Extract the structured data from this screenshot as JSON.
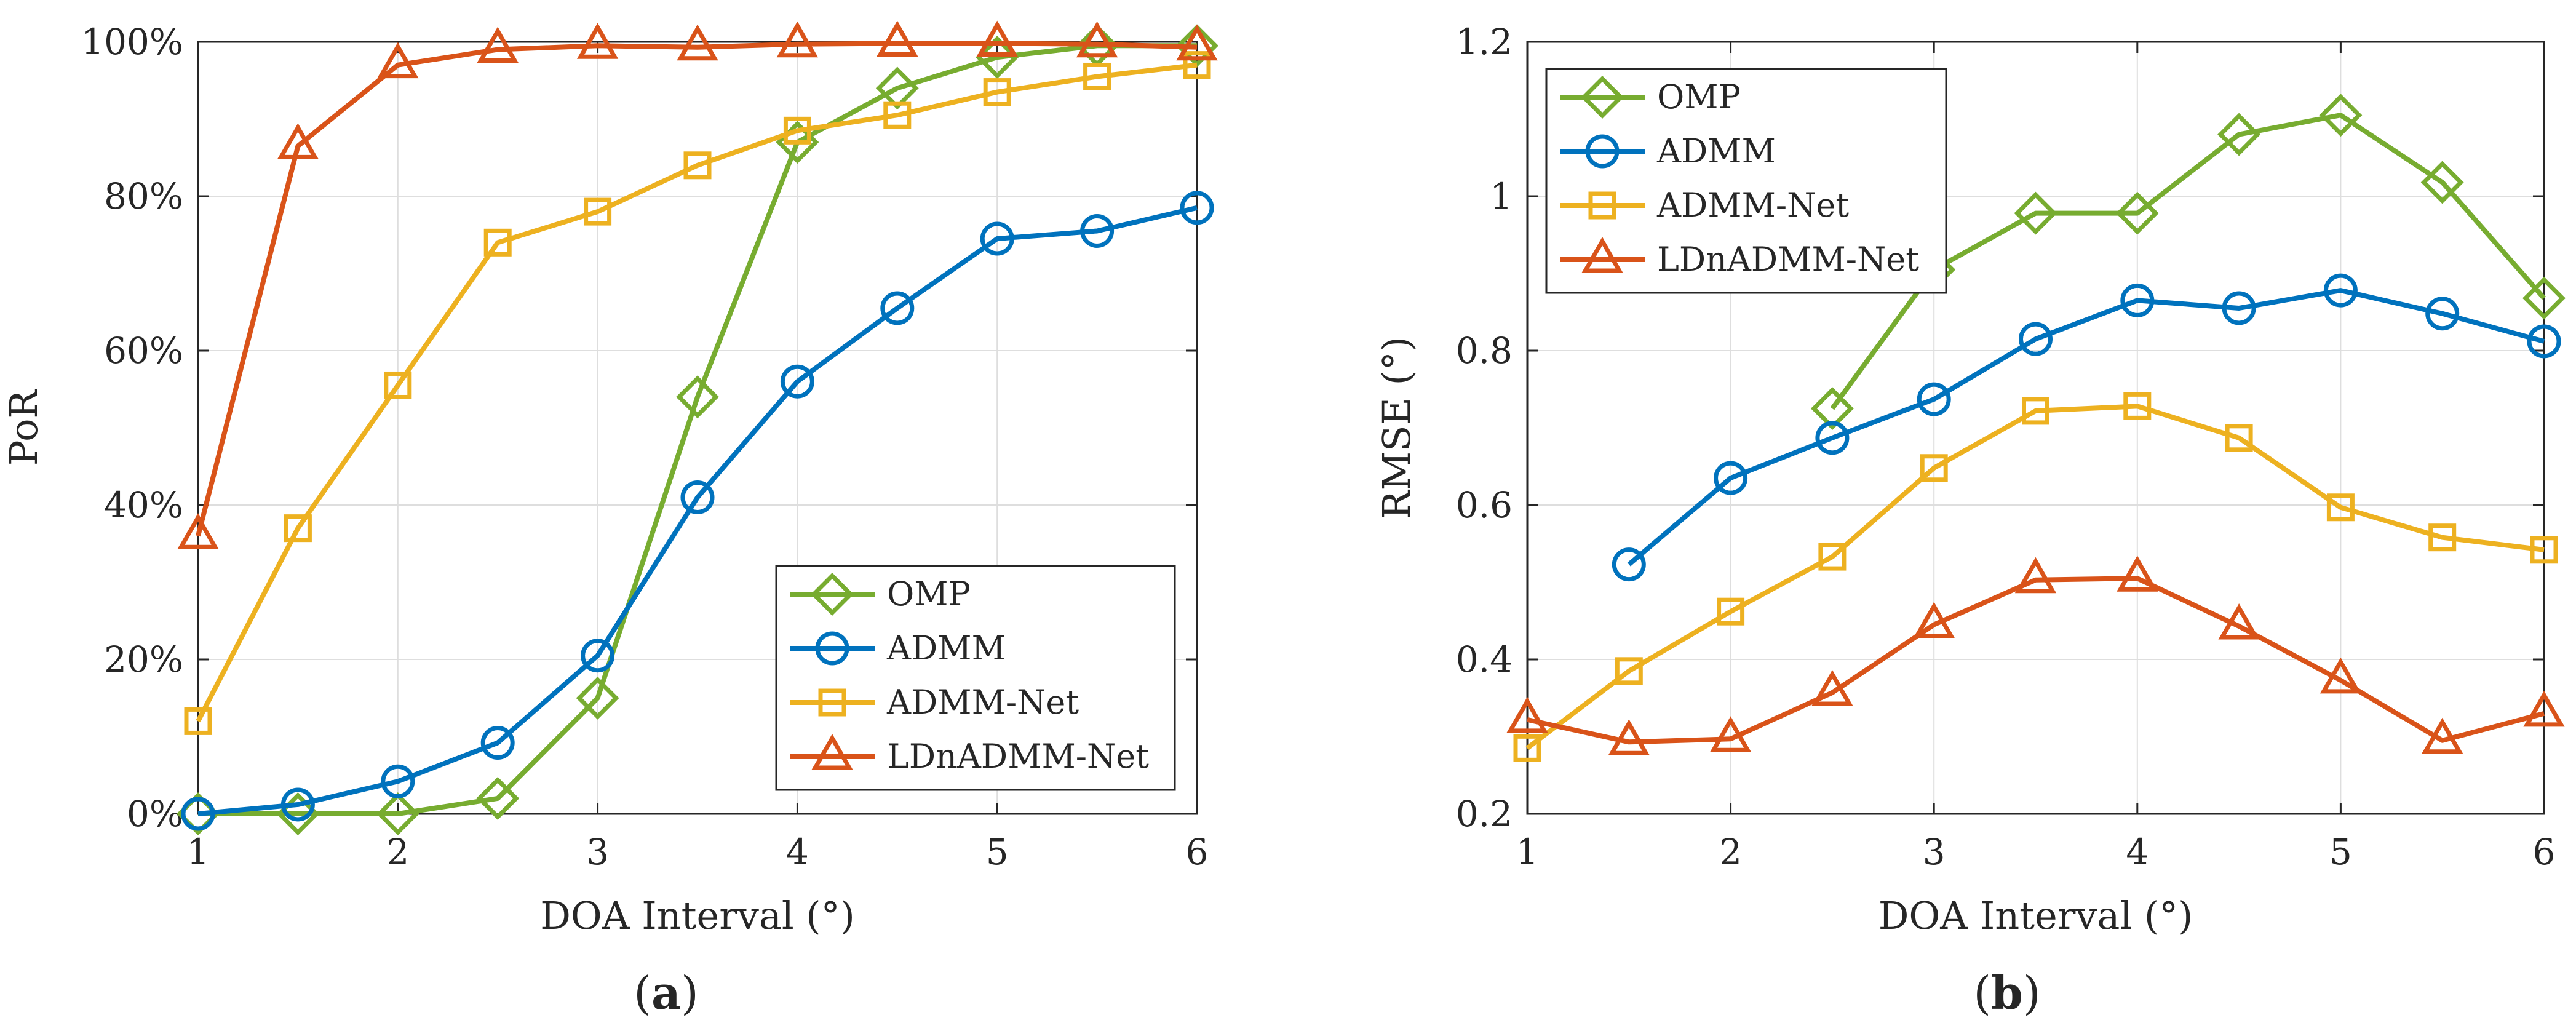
{
  "chart_data": [
    {
      "type": "line",
      "caption": "(a)",
      "caption_letter": "a",
      "xlabel": "DOA Interval (°)",
      "ylabel": "PoR",
      "xlim": [
        1,
        6
      ],
      "ylim": [
        0,
        100
      ],
      "grid": true,
      "legend_position": "bottom-right",
      "x_ticks": [
        "1",
        "2",
        "3",
        "4",
        "5",
        "6"
      ],
      "y_ticks": [
        "0%",
        "20%",
        "40%",
        "60%",
        "80%",
        "100%"
      ],
      "x": [
        1,
        1.5,
        2,
        2.5,
        3,
        3.5,
        4,
        4.5,
        5,
        5.5,
        6
      ],
      "series": [
        {
          "name": "OMP",
          "color": "#77AC30",
          "marker": "diamond",
          "values": [
            0,
            0,
            0,
            2,
            15,
            54,
            87,
            94,
            98,
            99.5,
            99.5
          ]
        },
        {
          "name": "ADMM",
          "color": "#0072BD",
          "marker": "circle",
          "values": [
            0,
            1.2,
            4.2,
            9.2,
            20.5,
            41,
            56,
            65.5,
            74.5,
            75.5,
            78.5
          ]
        },
        {
          "name": "ADMM-Net",
          "color": "#EDB120",
          "marker": "square",
          "values": [
            12,
            37,
            55.5,
            74,
            78,
            84,
            88.5,
            90.5,
            93.5,
            95.5,
            97
          ]
        },
        {
          "name": "LDnADMM-Net",
          "color": "#D95319",
          "marker": "triangle",
          "values": [
            36,
            86.5,
            97,
            99,
            99.5,
            99.3,
            99.7,
            99.8,
            99.8,
            99.7,
            99.3
          ]
        }
      ]
    },
    {
      "type": "line",
      "caption": "(b)",
      "caption_letter": "b",
      "xlabel": "DOA Interval (°)",
      "ylabel": "RMSE (°)",
      "xlim": [
        1,
        6
      ],
      "ylim": [
        0.2,
        1.2
      ],
      "grid": true,
      "legend_position": "top-left",
      "x_ticks": [
        "1",
        "2",
        "3",
        "4",
        "5",
        "6"
      ],
      "y_ticks": [
        "0.2",
        "0.4",
        "0.6",
        "0.8",
        "1",
        "1.2"
      ],
      "x": [
        1,
        1.5,
        2,
        2.5,
        3,
        3.5,
        4,
        4.5,
        5,
        5.5,
        6
      ],
      "series": [
        {
          "name": "OMP",
          "color": "#77AC30",
          "marker": "diamond",
          "values": [
            null,
            null,
            null,
            0.725,
            0.905,
            0.978,
            0.978,
            1.08,
            1.105,
            1.018,
            0.868
          ]
        },
        {
          "name": "ADMM",
          "color": "#0072BD",
          "marker": "circle",
          "values": [
            null,
            0.523,
            0.635,
            0.687,
            0.737,
            0.815,
            0.865,
            0.855,
            0.878,
            0.848,
            0.812
          ]
        },
        {
          "name": "ADMM-Net",
          "color": "#EDB120",
          "marker": "square",
          "values": [
            0.285,
            0.385,
            0.462,
            0.533,
            0.648,
            0.722,
            0.728,
            0.687,
            0.597,
            0.558,
            0.542
          ]
        },
        {
          "name": "LDnADMM-Net",
          "color": "#D95319",
          "marker": "triangle",
          "values": [
            0.322,
            0.293,
            0.297,
            0.357,
            0.445,
            0.503,
            0.505,
            0.443,
            0.373,
            0.295,
            0.33
          ]
        }
      ]
    }
  ]
}
